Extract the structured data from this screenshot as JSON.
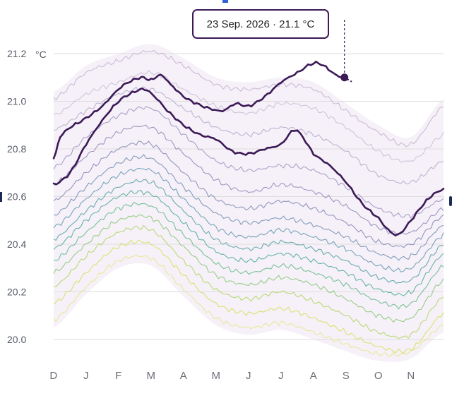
{
  "chart_data": {
    "type": "line",
    "title": "",
    "xlabel": "",
    "ylabel": "°C",
    "y_unit": "°C",
    "ylim": [
      19.92,
      21.25
    ],
    "y_ticks": [
      {
        "value": 21.2,
        "label": "21.2"
      },
      {
        "value": 21.0,
        "label": "21.0"
      },
      {
        "value": 20.8,
        "label": "20.8"
      },
      {
        "value": 20.6,
        "label": "20.6"
      },
      {
        "value": 20.4,
        "label": "20.4"
      },
      {
        "value": 20.2,
        "label": "20.2"
      },
      {
        "value": 20.0,
        "label": "20.0"
      }
    ],
    "months": [
      "D",
      "J",
      "F",
      "M",
      "A",
      "M",
      "J",
      "J",
      "A",
      "S",
      "O",
      "N"
    ],
    "grid": true,
    "legend": "none",
    "tooltip": {
      "label": "23 Sep. 2026 · 21.1 °C",
      "month_position": 8.95,
      "value": 21.1
    },
    "colors": {
      "highlight": "#3c1a57",
      "grid": "#dddddd",
      "band": "#7a3c96"
    },
    "highlight_series": [
      {
        "name": "",
        "points": [
          [
            0.0,
            20.76
          ],
          [
            0.2,
            20.85
          ],
          [
            0.5,
            20.89
          ],
          [
            1.0,
            20.93
          ],
          [
            1.5,
            20.98
          ],
          [
            2.0,
            21.05
          ],
          [
            2.3,
            21.08
          ],
          [
            2.7,
            21.1
          ],
          [
            3.0,
            21.09
          ],
          [
            3.3,
            21.11
          ],
          [
            3.6,
            21.07
          ],
          [
            4.0,
            21.02
          ],
          [
            4.4,
            20.99
          ],
          [
            4.8,
            20.97
          ],
          [
            5.2,
            20.96
          ],
          [
            5.6,
            20.99
          ],
          [
            6.0,
            20.98
          ],
          [
            6.5,
            21.02
          ],
          [
            7.0,
            21.08
          ],
          [
            7.5,
            21.12
          ],
          [
            8.0,
            21.16
          ],
          [
            8.3,
            21.15
          ],
          [
            8.7,
            21.11
          ],
          [
            8.95,
            21.1
          ]
        ]
      },
      {
        "name": "",
        "points": [
          [
            0.0,
            20.65
          ],
          [
            0.5,
            20.7
          ],
          [
            1.0,
            20.82
          ],
          [
            1.5,
            20.92
          ],
          [
            2.0,
            21.0
          ],
          [
            2.5,
            21.04
          ],
          [
            2.8,
            21.05
          ],
          [
            3.1,
            21.02
          ],
          [
            3.5,
            20.96
          ],
          [
            4.0,
            20.9
          ],
          [
            4.5,
            20.86
          ],
          [
            5.0,
            20.84
          ],
          [
            5.5,
            20.79
          ],
          [
            6.0,
            20.78
          ],
          [
            6.5,
            20.8
          ],
          [
            7.0,
            20.82
          ],
          [
            7.4,
            20.88
          ],
          [
            7.6,
            20.86
          ],
          [
            8.0,
            20.78
          ],
          [
            8.5,
            20.73
          ],
          [
            9.0,
            20.66
          ],
          [
            9.5,
            20.57
          ],
          [
            10.0,
            20.51
          ],
          [
            10.3,
            20.46
          ],
          [
            10.6,
            20.44
          ],
          [
            11.0,
            20.5
          ],
          [
            11.4,
            20.57
          ],
          [
            11.7,
            20.61
          ],
          [
            12.0,
            20.63
          ]
        ]
      }
    ],
    "background_series": [
      {
        "color": "#b9aacb",
        "points": [
          [
            0,
            21.01
          ],
          [
            1,
            21.12
          ],
          [
            2,
            21.17
          ],
          [
            3,
            21.21
          ],
          [
            4,
            21.15
          ],
          [
            5,
            21.07
          ],
          [
            6,
            21.05
          ],
          [
            7,
            21.07
          ],
          [
            8,
            21.05
          ],
          [
            9,
            20.96
          ],
          [
            10,
            20.87
          ],
          [
            11,
            20.82
          ],
          [
            12,
            20.98
          ]
        ]
      },
      {
        "color": "#c2b5d2",
        "points": [
          [
            0,
            20.94
          ],
          [
            1,
            21.03
          ],
          [
            2,
            21.08
          ],
          [
            3,
            21.12
          ],
          [
            4,
            21.05
          ],
          [
            5,
            20.98
          ],
          [
            6,
            20.95
          ],
          [
            7,
            20.99
          ],
          [
            8,
            20.97
          ],
          [
            9,
            20.89
          ],
          [
            10,
            20.79
          ],
          [
            11,
            20.75
          ],
          [
            12,
            20.86
          ]
        ]
      },
      {
        "color": "#a99fc4",
        "points": [
          [
            0,
            20.88
          ],
          [
            1,
            20.96
          ],
          [
            2,
            21.03
          ],
          [
            3,
            21.05
          ],
          [
            4,
            20.97
          ],
          [
            5,
            20.89
          ],
          [
            6,
            20.86
          ],
          [
            7,
            20.89
          ],
          [
            8,
            20.86
          ],
          [
            9,
            20.79
          ],
          [
            10,
            20.69
          ],
          [
            11,
            20.66
          ],
          [
            12,
            20.75
          ]
        ]
      },
      {
        "color": "#8e86b8",
        "points": [
          [
            0,
            20.72
          ],
          [
            1,
            20.85
          ],
          [
            2,
            20.94
          ],
          [
            3,
            20.97
          ],
          [
            4,
            20.86
          ],
          [
            5,
            20.75
          ],
          [
            6,
            20.71
          ],
          [
            7,
            20.73
          ],
          [
            8,
            20.71
          ],
          [
            9,
            20.64
          ],
          [
            10,
            20.55
          ],
          [
            11,
            20.52
          ],
          [
            12,
            20.59
          ]
        ]
      },
      {
        "color": "#7f7aae",
        "points": [
          [
            0,
            20.65
          ],
          [
            1,
            20.77
          ],
          [
            2,
            20.87
          ],
          [
            3,
            20.89
          ],
          [
            4,
            20.78
          ],
          [
            5,
            20.67
          ],
          [
            6,
            20.62
          ],
          [
            7,
            20.65
          ],
          [
            8,
            20.62
          ],
          [
            9,
            20.56
          ],
          [
            10,
            20.47
          ],
          [
            11,
            20.45
          ],
          [
            12,
            20.55
          ]
        ]
      },
      {
        "color": "#6f77aa",
        "points": [
          [
            0,
            20.58
          ],
          [
            1,
            20.7
          ],
          [
            2,
            20.8
          ],
          [
            3,
            20.82
          ],
          [
            4,
            20.7
          ],
          [
            5,
            20.59
          ],
          [
            6,
            20.55
          ],
          [
            7,
            20.58
          ],
          [
            8,
            20.55
          ],
          [
            9,
            20.49
          ],
          [
            10,
            20.41
          ],
          [
            11,
            20.4
          ],
          [
            12,
            20.52
          ]
        ]
      },
      {
        "color": "#5f7fa8",
        "points": [
          [
            0,
            20.52
          ],
          [
            1,
            20.64
          ],
          [
            2,
            20.74
          ],
          [
            3,
            20.76
          ],
          [
            4,
            20.64
          ],
          [
            5,
            20.53
          ],
          [
            6,
            20.49
          ],
          [
            7,
            20.51
          ],
          [
            8,
            20.48
          ],
          [
            9,
            20.43
          ],
          [
            10,
            20.36
          ],
          [
            11,
            20.35
          ],
          [
            12,
            20.48
          ]
        ]
      },
      {
        "color": "#4d8aa5",
        "points": [
          [
            0,
            20.47
          ],
          [
            1,
            20.59
          ],
          [
            2,
            20.69
          ],
          [
            3,
            20.71
          ],
          [
            4,
            20.59
          ],
          [
            5,
            20.47
          ],
          [
            6,
            20.43
          ],
          [
            7,
            20.46
          ],
          [
            8,
            20.43
          ],
          [
            9,
            20.38
          ],
          [
            10,
            20.31
          ],
          [
            11,
            20.3
          ],
          [
            12,
            20.44
          ]
        ]
      },
      {
        "color": "#3d9497",
        "points": [
          [
            0,
            20.42
          ],
          [
            1,
            20.54
          ],
          [
            2,
            20.64
          ],
          [
            3,
            20.66
          ],
          [
            4,
            20.54
          ],
          [
            5,
            20.42
          ],
          [
            6,
            20.38
          ],
          [
            7,
            20.41
          ],
          [
            8,
            20.38
          ],
          [
            9,
            20.33
          ],
          [
            10,
            20.26
          ],
          [
            11,
            20.25
          ],
          [
            12,
            20.4
          ]
        ]
      },
      {
        "color": "#37a08a",
        "points": [
          [
            0,
            20.38
          ],
          [
            1,
            20.5
          ],
          [
            2,
            20.6
          ],
          [
            3,
            20.61
          ],
          [
            4,
            20.49
          ],
          [
            5,
            20.37
          ],
          [
            6,
            20.33
          ],
          [
            7,
            20.36
          ],
          [
            8,
            20.33
          ],
          [
            9,
            20.28
          ],
          [
            10,
            20.21
          ],
          [
            11,
            20.2
          ],
          [
            12,
            20.36
          ]
        ]
      },
      {
        "color": "#4fb07a",
        "points": [
          [
            0,
            20.33
          ],
          [
            1,
            20.45
          ],
          [
            2,
            20.55
          ],
          [
            3,
            20.56
          ],
          [
            4,
            20.44
          ],
          [
            5,
            20.32
          ],
          [
            6,
            20.28
          ],
          [
            7,
            20.31
          ],
          [
            8,
            20.28
          ],
          [
            9,
            20.23
          ],
          [
            10,
            20.16
          ],
          [
            11,
            20.15
          ],
          [
            12,
            20.31
          ]
        ]
      },
      {
        "color": "#78c063",
        "points": [
          [
            0,
            20.28
          ],
          [
            1,
            20.4
          ],
          [
            2,
            20.5
          ],
          [
            3,
            20.51
          ],
          [
            4,
            20.39
          ],
          [
            5,
            20.27
          ],
          [
            6,
            20.23
          ],
          [
            7,
            20.26
          ],
          [
            8,
            20.23
          ],
          [
            9,
            20.17
          ],
          [
            10,
            20.1
          ],
          [
            11,
            20.09
          ],
          [
            12,
            20.25
          ]
        ]
      },
      {
        "color": "#a6d04d",
        "points": [
          [
            0,
            20.22
          ],
          [
            1,
            20.35
          ],
          [
            2,
            20.45
          ],
          [
            3,
            20.46
          ],
          [
            4,
            20.33
          ],
          [
            5,
            20.21
          ],
          [
            6,
            20.17
          ],
          [
            7,
            20.2
          ],
          [
            8,
            20.16
          ],
          [
            9,
            20.1
          ],
          [
            10,
            20.03
          ],
          [
            11,
            20.02
          ],
          [
            12,
            20.18
          ]
        ]
      },
      {
        "color": "#cfdc45",
        "points": [
          [
            0,
            20.15
          ],
          [
            1,
            20.28
          ],
          [
            2,
            20.39
          ],
          [
            3,
            20.4
          ],
          [
            4,
            20.27
          ],
          [
            5,
            20.15
          ],
          [
            6,
            20.11
          ],
          [
            7,
            20.13
          ],
          [
            8,
            20.09
          ],
          [
            9,
            20.03
          ],
          [
            10,
            19.97
          ],
          [
            11,
            19.96
          ],
          [
            12,
            20.11
          ]
        ]
      },
      {
        "color": "#e3e47a",
        "points": [
          [
            0,
            20.08
          ],
          [
            1,
            20.22
          ],
          [
            2,
            20.33
          ],
          [
            3,
            20.34
          ],
          [
            4,
            20.21
          ],
          [
            5,
            20.09
          ],
          [
            6,
            20.05
          ],
          [
            7,
            20.07
          ],
          [
            8,
            20.03
          ],
          [
            9,
            19.98
          ],
          [
            10,
            19.94
          ],
          [
            11,
            19.95
          ],
          [
            12,
            20.06
          ]
        ]
      }
    ]
  }
}
